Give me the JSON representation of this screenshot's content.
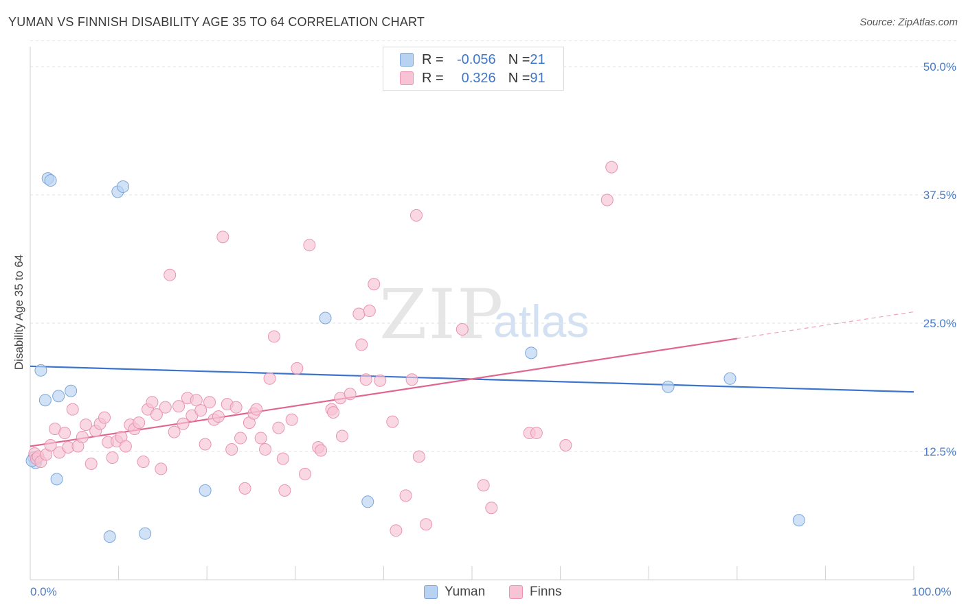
{
  "title": "YUMAN VS FINNISH DISABILITY AGE 35 TO 64 CORRELATION CHART",
  "source": "Source: ZipAtlas.com",
  "watermark": {
    "zip": "ZIP",
    "atlas": "atlas"
  },
  "colors": {
    "yuman_fill": "#b8d2f2",
    "yuman_stroke": "#7aa6dc",
    "yuman_line": "#3a74cc",
    "finns_fill": "#f8c3d4",
    "finns_stroke": "#e994b0",
    "finns_line": "#e06591",
    "axis_text": "#4a7dc8",
    "grid": "#e2e2e2"
  },
  "legend": {
    "yuman": {
      "r_label": "R = ",
      "r_value": "-0.056",
      "n_label": "N = ",
      "n_value": "21"
    },
    "finns": {
      "r_label": "R = ",
      "r_value": "0.326",
      "n_label": "N = ",
      "n_value": "91"
    }
  },
  "chart_data": {
    "type": "scatter",
    "title": "YUMAN VS FINNISH DISABILITY AGE 35 TO 64 CORRELATION CHART",
    "xlabel": "",
    "ylabel": "Disability Age 35 to 64",
    "xlim": [
      0,
      100
    ],
    "ylim": [
      0,
      52.5
    ],
    "x_tick_labels": [
      "0.0%",
      "100.0%"
    ],
    "y_ticks": [
      12.5,
      25.0,
      37.5,
      50.0
    ],
    "y_tick_labels": [
      "12.5%",
      "25.0%",
      "37.5%",
      "50.0%"
    ],
    "series": [
      {
        "name": "Yuman",
        "r": -0.056,
        "n": 21,
        "trend": {
          "x0": 0,
          "y0": 20.8,
          "x1": 100,
          "y1": 18.3
        },
        "points": [
          [
            2.0,
            39.1
          ],
          [
            2.3,
            38.9
          ],
          [
            9.9,
            37.8
          ],
          [
            10.5,
            38.3
          ],
          [
            1.2,
            20.4
          ],
          [
            1.7,
            17.5
          ],
          [
            3.2,
            17.9
          ],
          [
            4.6,
            18.4
          ],
          [
            0.4,
            11.9
          ],
          [
            0.6,
            11.4
          ],
          [
            3.0,
            9.8
          ],
          [
            9.0,
            4.2
          ],
          [
            13.0,
            4.5
          ],
          [
            19.8,
            8.7
          ],
          [
            33.4,
            25.5
          ],
          [
            38.2,
            7.6
          ],
          [
            56.7,
            22.1
          ],
          [
            72.2,
            18.8
          ],
          [
            79.2,
            19.6
          ],
          [
            87.0,
            5.8
          ],
          [
            0.2,
            11.6
          ]
        ]
      },
      {
        "name": "Finns",
        "r": 0.326,
        "n": 91,
        "trend": {
          "x0": 0,
          "y0": 13.0,
          "x1": 80,
          "y1": 23.5,
          "dash_x1": 100,
          "dash_y1": 26.1
        },
        "points": [
          [
            0.5,
            12.3
          ],
          [
            0.7,
            11.8
          ],
          [
            0.9,
            12.0
          ],
          [
            1.2,
            11.5
          ],
          [
            1.8,
            12.2
          ],
          [
            2.3,
            13.1
          ],
          [
            2.8,
            14.7
          ],
          [
            3.3,
            12.4
          ],
          [
            3.9,
            14.3
          ],
          [
            4.3,
            12.9
          ],
          [
            4.8,
            16.6
          ],
          [
            5.4,
            13.0
          ],
          [
            5.9,
            13.9
          ],
          [
            6.3,
            15.1
          ],
          [
            6.9,
            11.3
          ],
          [
            7.4,
            14.5
          ],
          [
            7.9,
            15.2
          ],
          [
            8.4,
            15.8
          ],
          [
            8.8,
            13.4
          ],
          [
            9.3,
            11.9
          ],
          [
            9.8,
            13.5
          ],
          [
            10.3,
            13.9
          ],
          [
            10.8,
            13.0
          ],
          [
            11.3,
            15.1
          ],
          [
            11.8,
            14.7
          ],
          [
            12.3,
            15.3
          ],
          [
            12.8,
            11.5
          ],
          [
            13.3,
            16.6
          ],
          [
            13.8,
            17.3
          ],
          [
            14.3,
            16.1
          ],
          [
            14.8,
            10.8
          ],
          [
            15.3,
            16.8
          ],
          [
            15.8,
            29.7
          ],
          [
            16.3,
            14.4
          ],
          [
            16.8,
            16.9
          ],
          [
            17.3,
            15.2
          ],
          [
            17.8,
            17.7
          ],
          [
            18.3,
            16.0
          ],
          [
            18.8,
            17.5
          ],
          [
            19.3,
            16.5
          ],
          [
            19.8,
            13.2
          ],
          [
            20.3,
            17.3
          ],
          [
            20.8,
            15.6
          ],
          [
            21.3,
            15.9
          ],
          [
            21.8,
            33.4
          ],
          [
            22.3,
            17.1
          ],
          [
            22.8,
            12.7
          ],
          [
            23.3,
            16.8
          ],
          [
            23.8,
            13.8
          ],
          [
            24.3,
            8.9
          ],
          [
            24.8,
            15.3
          ],
          [
            25.3,
            16.2
          ],
          [
            25.6,
            16.6
          ],
          [
            26.1,
            13.8
          ],
          [
            26.6,
            12.7
          ],
          [
            27.1,
            19.6
          ],
          [
            27.6,
            23.7
          ],
          [
            28.1,
            14.8
          ],
          [
            28.6,
            11.8
          ],
          [
            28.8,
            8.7
          ],
          [
            29.6,
            15.6
          ],
          [
            30.2,
            20.6
          ],
          [
            31.1,
            10.3
          ],
          [
            31.6,
            32.6
          ],
          [
            32.6,
            12.9
          ],
          [
            32.9,
            12.6
          ],
          [
            34.1,
            16.6
          ],
          [
            34.3,
            16.3
          ],
          [
            35.1,
            17.7
          ],
          [
            35.3,
            14.0
          ],
          [
            36.2,
            18.1
          ],
          [
            37.2,
            25.9
          ],
          [
            37.5,
            22.9
          ],
          [
            38.0,
            19.5
          ],
          [
            38.4,
            26.2
          ],
          [
            38.9,
            28.8
          ],
          [
            39.6,
            19.4
          ],
          [
            41.0,
            15.4
          ],
          [
            41.4,
            4.8
          ],
          [
            42.5,
            8.2
          ],
          [
            43.2,
            19.5
          ],
          [
            43.7,
            35.5
          ],
          [
            44.0,
            12.0
          ],
          [
            44.8,
            5.4
          ],
          [
            48.9,
            24.4
          ],
          [
            51.3,
            9.2
          ],
          [
            52.2,
            7.0
          ],
          [
            56.5,
            14.3
          ],
          [
            57.3,
            14.3
          ],
          [
            60.6,
            13.1
          ],
          [
            65.8,
            40.2
          ],
          [
            65.3,
            37.0
          ]
        ]
      }
    ]
  }
}
